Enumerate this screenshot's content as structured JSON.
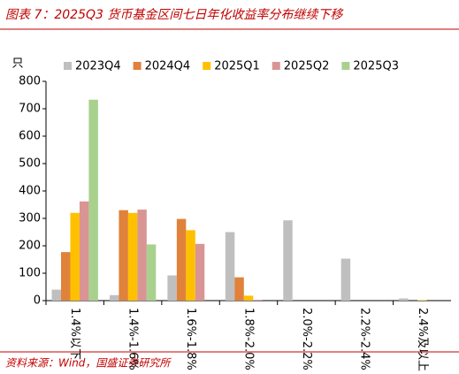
{
  "chart_data": {
    "type": "bar",
    "title": "图表 7：2025Q3 货币基金区间七日年化收益率分布继续下移",
    "y_label": "只",
    "source": "资料来源：Wind，国盛证券研究所",
    "categories": [
      "1.4%以下",
      "1.4%-1.6%",
      "1.6%-1.8%",
      "1.8%-2.0%",
      "2.0%-2.2%",
      "2.2%-2.4%",
      "2.4%及以上"
    ],
    "series": [
      {
        "name": "2023Q4",
        "color": "#bfbfbf",
        "values": [
          40,
          20,
          92,
          250,
          293,
          153,
          8
        ]
      },
      {
        "name": "2024Q4",
        "color": "#e0823a",
        "values": [
          177,
          330,
          298,
          85,
          0,
          0,
          0
        ]
      },
      {
        "name": "2025Q1",
        "color": "#ffc000",
        "values": [
          320,
          320,
          257,
          18,
          0,
          0,
          2
        ]
      },
      {
        "name": "2025Q2",
        "color": "#d99594",
        "values": [
          362,
          332,
          207,
          3,
          0,
          0,
          0
        ]
      },
      {
        "name": "2025Q3",
        "color": "#a9d18e",
        "values": [
          733,
          205,
          0,
          0,
          0,
          0,
          0
        ]
      }
    ],
    "ylim": [
      0,
      800
    ],
    "yticks": [
      0,
      100,
      200,
      300,
      400,
      500,
      600,
      700,
      800
    ],
    "grid": false,
    "legend": "top"
  }
}
